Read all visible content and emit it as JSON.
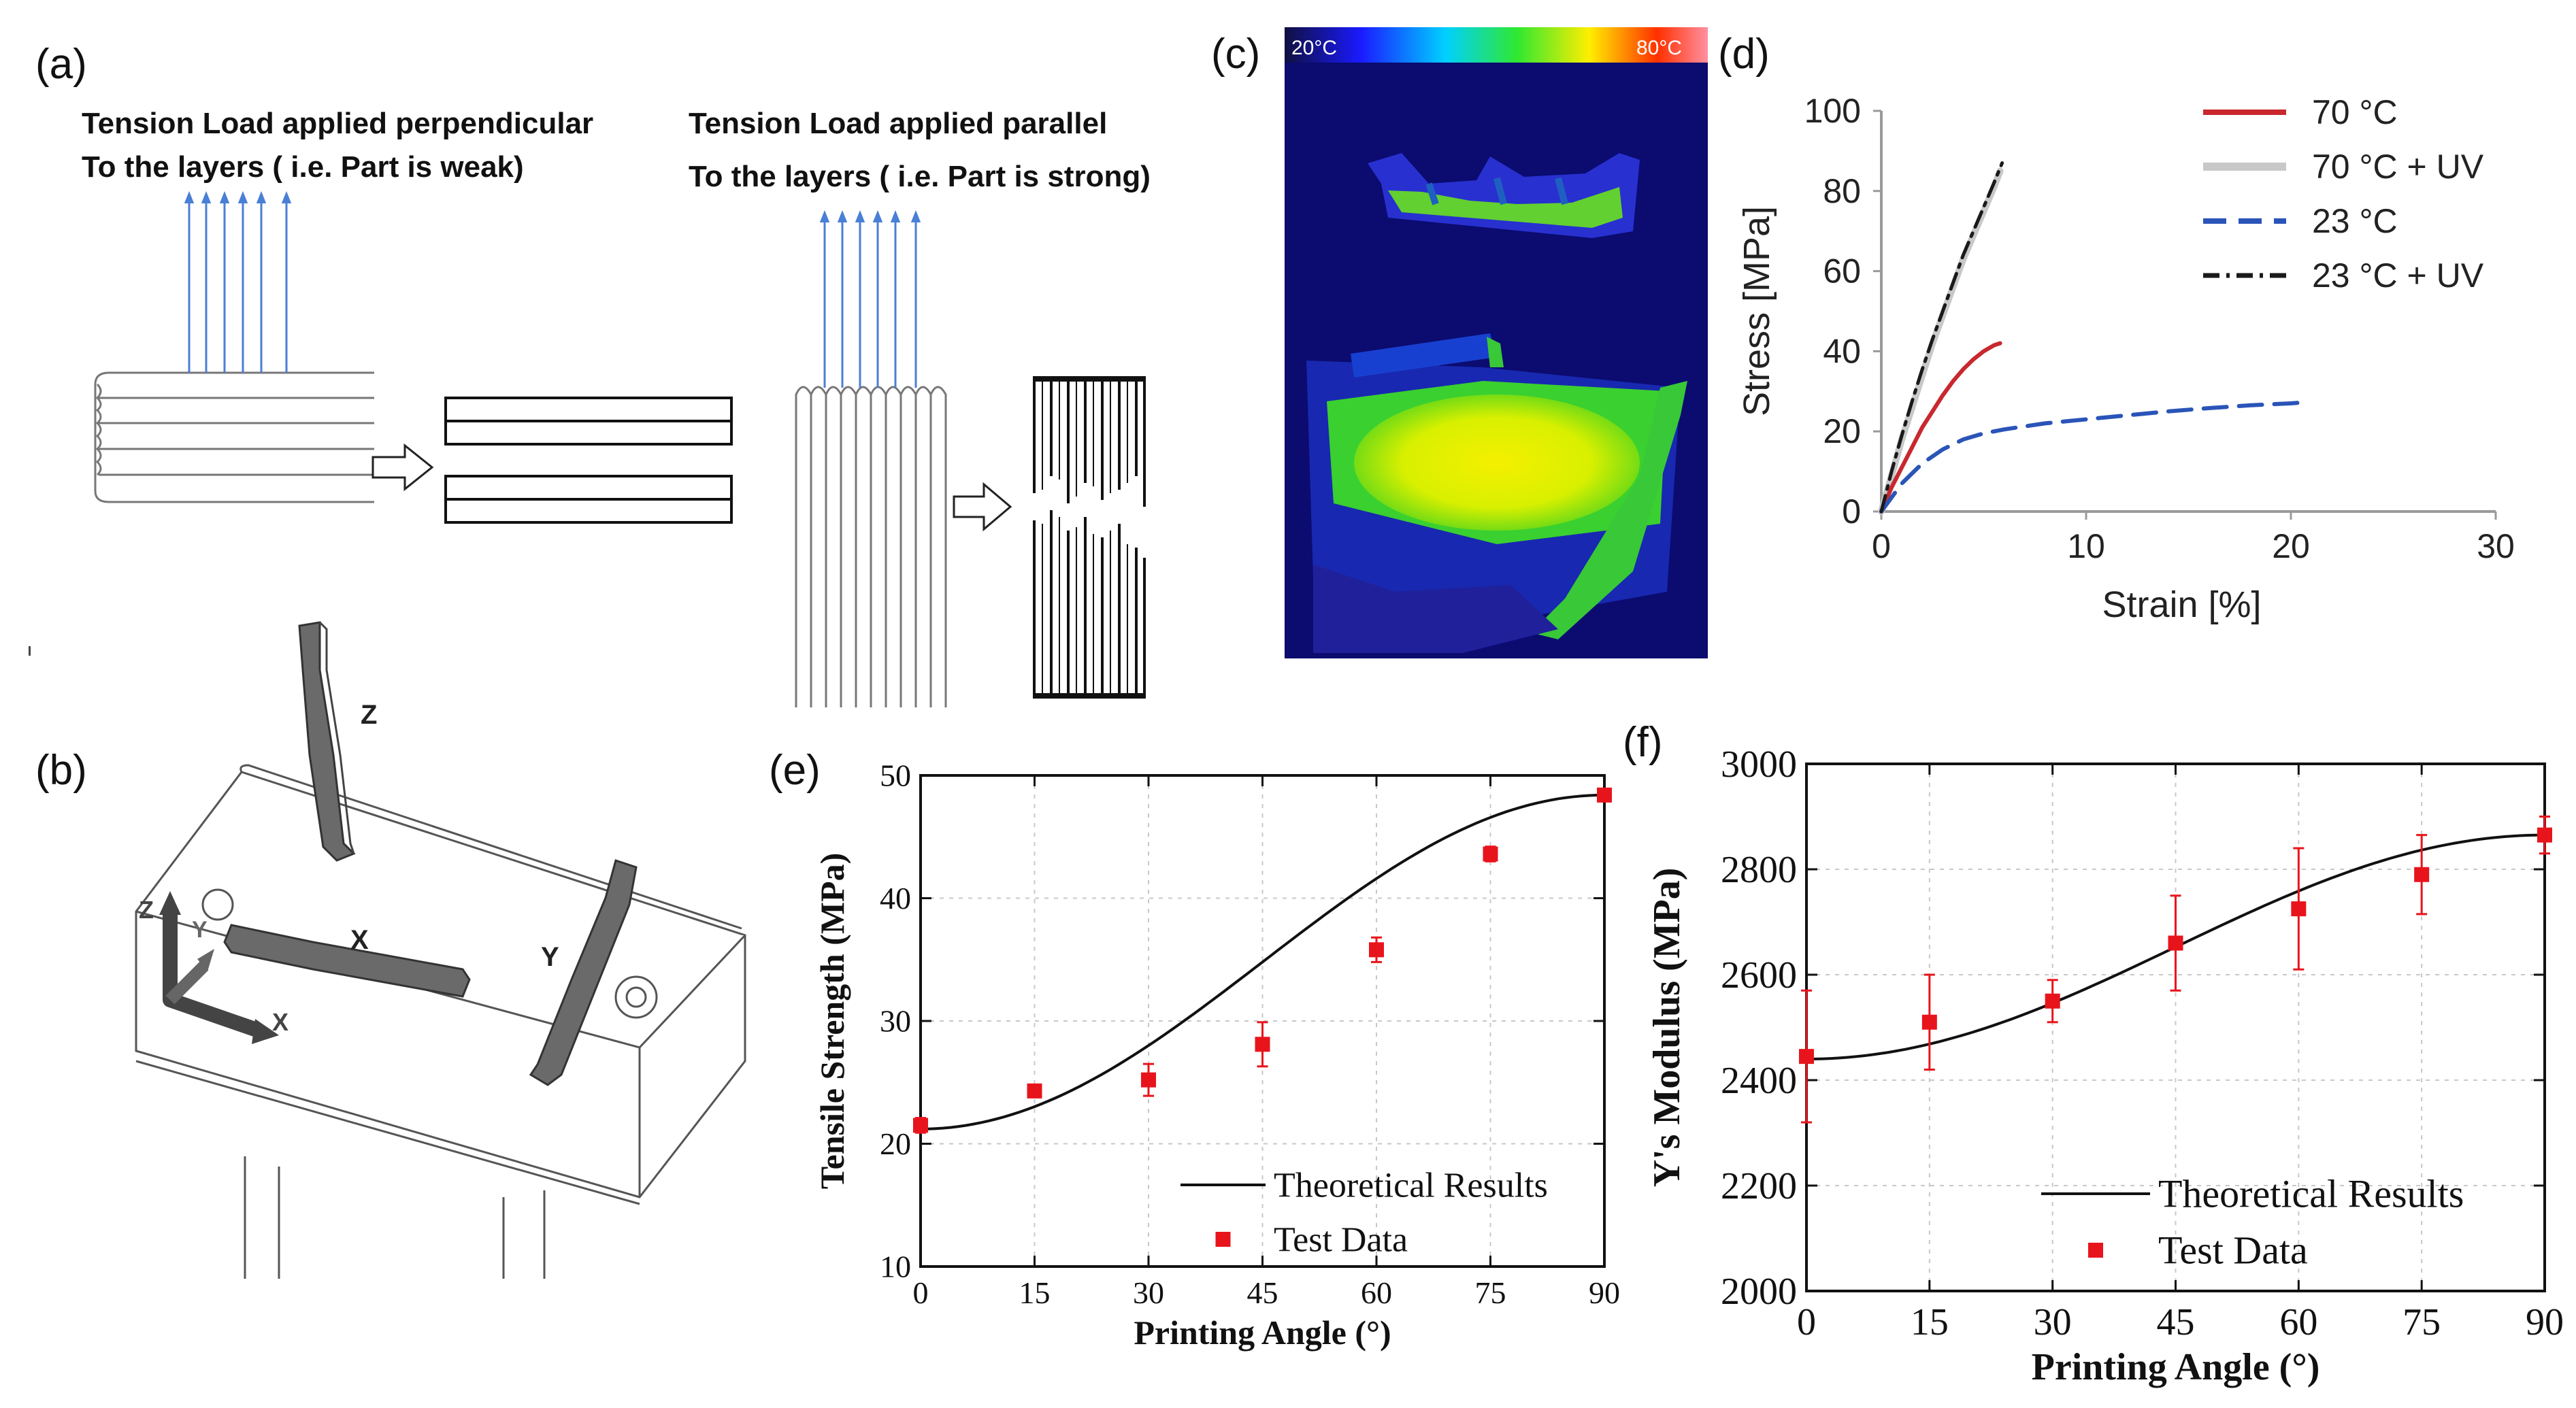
{
  "panels": {
    "a": {
      "label": "(a)",
      "left_title_1": "Tension Load applied perpendicular",
      "left_title_2": "To the layers ( i.e. Part is weak)",
      "right_title_1": "Tension Load applied parallel",
      "right_title_2": "To the layers ( i.e. Part is strong)"
    },
    "b": {
      "label": "(b)",
      "specimen_z": "Z",
      "specimen_x": "X",
      "specimen_y": "Y",
      "axis_z": "Z",
      "axis_y": "Y",
      "axis_x": "X"
    },
    "c": {
      "label": "(c)",
      "scale_min": "20°C",
      "scale_max": "80°C"
    },
    "d": {
      "label": "(d)"
    },
    "e": {
      "label": "(e)"
    },
    "f": {
      "label": "(f)"
    }
  },
  "colors": {
    "arrow_blue": "#4a7fd6",
    "test_red": "#e8141c",
    "curve_70": "#c8282e",
    "curve_70uv": "#c8c8c8",
    "curve_23": "#2a54b8",
    "curve_23uv": "#1a1a1a"
  },
  "chart_data": [
    {
      "id": "d",
      "type": "line",
      "title": "",
      "xlabel": "Strain [%]",
      "ylabel": "Stress [MPa]",
      "xlim": [
        0,
        30
      ],
      "ylim": [
        0,
        100
      ],
      "xticks": [
        0,
        10,
        20,
        30
      ],
      "yticks": [
        0,
        20,
        40,
        60,
        80,
        100
      ],
      "legend_position": "top-right",
      "series": [
        {
          "name": "70 °C",
          "style": "solid",
          "color": "#c8282e",
          "x": [
            0,
            0.5,
            1,
            1.5,
            2,
            2.5,
            3,
            3.5,
            4,
            4.5,
            5,
            5.5,
            5.8
          ],
          "y": [
            0,
            6,
            11,
            16,
            21,
            25,
            29,
            32.5,
            35.5,
            38,
            40,
            41.5,
            42
          ]
        },
        {
          "name": "70 °C + UV",
          "style": "solid-thick",
          "color": "#c8c8c8",
          "x": [
            0,
            0.5,
            1,
            1.5,
            2,
            2.5,
            3,
            3.5,
            4,
            4.5,
            5,
            5.5,
            5.8
          ],
          "y": [
            0,
            9,
            18,
            26,
            34,
            42,
            49,
            56,
            63,
            69,
            75,
            81,
            85
          ]
        },
        {
          "name": "23 °C",
          "style": "dashed",
          "color": "#2a54b8",
          "x": [
            0,
            1,
            2,
            3,
            4,
            5,
            6,
            8,
            10,
            12,
            14,
            16,
            18,
            20,
            20.8
          ],
          "y": [
            0,
            7,
            12,
            15.5,
            18,
            19.5,
            20.5,
            22,
            23,
            24,
            25,
            25.8,
            26.5,
            27,
            27.3
          ]
        },
        {
          "name": "23 °C + UV",
          "style": "dashdot",
          "color": "#1a1a1a",
          "x": [
            0,
            0.5,
            1,
            1.5,
            2,
            2.5,
            3,
            3.5,
            4,
            4.5,
            5,
            5.5,
            5.9
          ],
          "y": [
            0,
            10,
            19,
            27.5,
            35.5,
            43,
            50,
            57,
            64,
            70,
            76,
            82,
            87
          ]
        }
      ]
    },
    {
      "id": "e",
      "type": "scatter",
      "title": "",
      "xlabel": "Printing Angle (°)",
      "ylabel": "Tensile Strength (MPa)",
      "xlim": [
        0,
        90
      ],
      "ylim": [
        10,
        50
      ],
      "xticks": [
        0,
        15,
        30,
        45,
        60,
        75,
        90
      ],
      "yticks": [
        10,
        20,
        30,
        40,
        50
      ],
      "grid": true,
      "legend_position": "bottom-right",
      "series": [
        {
          "name": "Theoretical Results",
          "kind": "curve",
          "formula": "21.2 + 27.2 * sin^2(angle)"
        },
        {
          "name": "Test Data",
          "kind": "points",
          "x": [
            0,
            15,
            30,
            45,
            60,
            75,
            90
          ],
          "y": [
            21.5,
            24.3,
            25.2,
            28.1,
            35.8,
            43.6,
            48.4
          ],
          "err": [
            0.6,
            0.3,
            1.3,
            1.8,
            1.0,
            0.6,
            0.5
          ]
        }
      ]
    },
    {
      "id": "f",
      "type": "scatter",
      "title": "",
      "xlabel": "Printing Angle (°)",
      "ylabel": "Y's Modulus (MPa)",
      "xlim": [
        0,
        90
      ],
      "ylim": [
        2000,
        3000
      ],
      "xticks": [
        0,
        15,
        30,
        45,
        60,
        75,
        90
      ],
      "yticks": [
        2000,
        2200,
        2400,
        2600,
        2800,
        3000
      ],
      "grid": true,
      "legend_position": "bottom-right",
      "series": [
        {
          "name": "Theoretical Results",
          "kind": "curve",
          "formula": "2440 + 425 * sin^2(angle)"
        },
        {
          "name": "Test Data",
          "kind": "points",
          "x": [
            0,
            15,
            30,
            45,
            60,
            75,
            90
          ],
          "y": [
            2445,
            2510,
            2550,
            2660,
            2725,
            2790,
            2865
          ],
          "err": [
            125,
            90,
            40,
            90,
            115,
            75,
            35
          ]
        }
      ]
    }
  ]
}
